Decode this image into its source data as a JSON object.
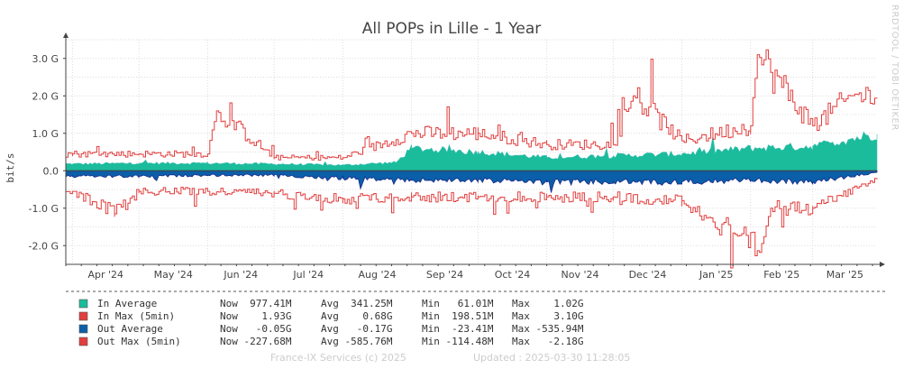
{
  "title": "All POPs in Lille - 1 Year",
  "vertical_label": "bit/s",
  "watermark": "RRDTOOL / TOBI OETIKER",
  "footer": {
    "left": "France-IX Services (c) 2025",
    "right": "Updated : 2025-03-30 11:28:05"
  },
  "colors": {
    "in_average": "#1abc9c",
    "in_average_edge": "#3dbdb0",
    "out_average": "#0a5fa8",
    "out_average_edge": "#1a2a8a",
    "in_max": "#e23e3e",
    "out_max": "#e23e3e",
    "title": "#444444"
  },
  "chart_data": {
    "type": "area",
    "title": "All POPs in Lille - 1 Year",
    "ylabel": "bit/s",
    "xlabel": "",
    "ylim": [
      -2.5,
      3.5
    ],
    "y_unit": "G bit/s",
    "y_ticks": [
      "3.0 G",
      "2.0 G",
      "1.0 G",
      "0.0",
      "-1.0 G",
      "-2.0 G"
    ],
    "y_tick_values": [
      3.0,
      2.0,
      1.0,
      0.0,
      -1.0,
      -2.0
    ],
    "x_ticks": [
      "Apr '24",
      "May '24",
      "Jun '24",
      "Jul '24",
      "Aug '24",
      "Sep '24",
      "Oct '24",
      "Nov '24",
      "Dec '24",
      "Jan '25",
      "Feb '25",
      "Mar '25"
    ],
    "x_range": [
      "2024-03-29",
      "2025-03-30"
    ],
    "grid": true,
    "series": [
      {
        "name": "In Average",
        "style": "area-positive",
        "x": [
          "2024-04-01",
          "2024-05-01",
          "2024-06-01",
          "2024-07-01",
          "2024-08-01",
          "2024-08-25",
          "2024-09-01",
          "2024-10-01",
          "2024-11-01",
          "2024-12-01",
          "2025-01-01",
          "2025-02-01",
          "2025-03-01",
          "2025-03-30"
        ],
        "values": [
          0.18,
          0.2,
          0.2,
          0.18,
          0.15,
          0.22,
          0.6,
          0.5,
          0.35,
          0.4,
          0.45,
          0.6,
          0.65,
          0.98
        ]
      },
      {
        "name": "In Max (5min)",
        "style": "line",
        "x": [
          "2024-04-01",
          "2024-05-01",
          "2024-06-01",
          "2024-06-05",
          "2024-07-01",
          "2024-08-01",
          "2024-09-01",
          "2024-10-01",
          "2024-11-01",
          "2024-12-01",
          "2024-12-10",
          "2025-01-01",
          "2025-02-01",
          "2025-02-04",
          "2025-03-01",
          "2025-03-20",
          "2025-03-30"
        ],
        "values": [
          0.45,
          0.45,
          0.45,
          1.6,
          0.35,
          0.35,
          1.0,
          1.0,
          0.7,
          0.7,
          2.0,
          0.8,
          1.2,
          3.1,
          1.2,
          2.05,
          1.93
        ]
      },
      {
        "name": "Out Average",
        "style": "area-negative",
        "x": [
          "2024-04-01",
          "2024-05-01",
          "2024-06-01",
          "2024-07-01",
          "2024-08-01",
          "2024-09-01",
          "2024-10-01",
          "2024-11-01",
          "2024-12-01",
          "2025-01-01",
          "2025-02-01",
          "2025-03-01",
          "2025-03-30"
        ],
        "values": [
          -0.15,
          -0.15,
          -0.12,
          -0.12,
          -0.2,
          -0.25,
          -0.25,
          -0.3,
          -0.3,
          -0.3,
          -0.25,
          -0.3,
          -0.05
        ]
      },
      {
        "name": "Out Max (5min)",
        "style": "line",
        "x": [
          "2024-04-01",
          "2024-04-20",
          "2024-05-01",
          "2024-06-01",
          "2024-07-01",
          "2024-08-01",
          "2024-09-01",
          "2024-10-01",
          "2024-11-01",
          "2024-12-01",
          "2025-01-01",
          "2025-01-25",
          "2025-02-05",
          "2025-02-10",
          "2025-03-01",
          "2025-03-30"
        ],
        "values": [
          -0.55,
          -1.15,
          -0.55,
          -0.55,
          -0.6,
          -0.75,
          -0.7,
          -0.7,
          -0.7,
          -0.7,
          -0.8,
          -1.7,
          -2.18,
          -1.0,
          -1.0,
          -0.23
        ]
      }
    ]
  },
  "legend": [
    {
      "label": "In Average",
      "color_key": "in_average",
      "now": "Now  977.41M",
      "avg": "Avg  341.25M",
      "min": "Min   61.01M",
      "max": "Max    1.02G"
    },
    {
      "label": "In Max (5min)",
      "color_key": "in_max",
      "now": "Now    1.93G",
      "avg": "Avg    0.68G",
      "min": "Min  198.51M",
      "max": "Max    3.10G"
    },
    {
      "label": "Out Average",
      "color_key": "out_average",
      "now": "Now   -0.05G",
      "avg": "Avg   -0.17G",
      "min": "Min  -23.41M",
      "max": "Max -535.94M"
    },
    {
      "label": "Out Max (5min)",
      "color_key": "out_max",
      "now": "Now -227.68M",
      "avg": "Avg -585.76M",
      "min": "Min -114.48M",
      "max": "Max   -2.18G"
    }
  ]
}
